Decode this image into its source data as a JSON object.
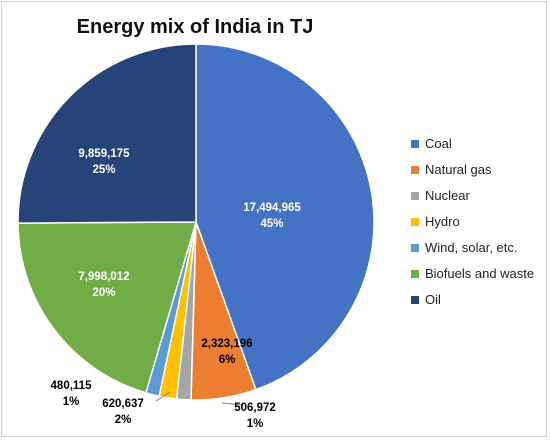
{
  "chart_data": {
    "type": "pie",
    "title": "Energy mix of India in TJ",
    "slices": [
      {
        "name": "Coal",
        "value": 17494965,
        "value_label": "17,494,965",
        "percent_label": "45%",
        "color": "#4472C4"
      },
      {
        "name": "Natural gas",
        "value": 2323196,
        "value_label": "2,323,196",
        "percent_label": "6%",
        "color": "#ED7D31"
      },
      {
        "name": "Nuclear",
        "value": 506972,
        "value_label": "506,972",
        "percent_label": "1%",
        "color": "#A5A5A5"
      },
      {
        "name": "Hydro",
        "value": 620637,
        "value_label": "620,637",
        "percent_label": "2%",
        "color": "#FFC000"
      },
      {
        "name": "Wind, solar, etc.",
        "value": 480115,
        "value_label": "480,115",
        "percent_label": "1%",
        "color": "#5B9BD5"
      },
      {
        "name": "Biofuels and waste",
        "value": 7998012,
        "value_label": "7,998,012",
        "percent_label": "20%",
        "color": "#70AD47"
      },
      {
        "name": "Oil",
        "value": 9859175,
        "value_label": "9,859,175",
        "percent_label": "25%",
        "color": "#264478"
      }
    ],
    "legend_position": "right"
  }
}
